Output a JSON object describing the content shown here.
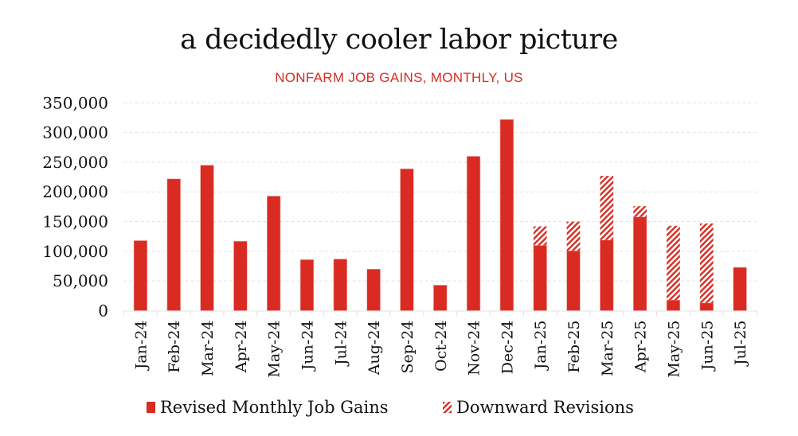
{
  "chart_data": {
    "type": "bar",
    "stacked": true,
    "title": "a decidedly cooler labor picture",
    "subtitle": "NONFARM JOB GAINS, MONTHLY, US",
    "xlabel": "",
    "ylabel": "",
    "ylim": [
      0,
      350000
    ],
    "yticks": [
      0,
      50000,
      100000,
      150000,
      200000,
      250000,
      300000,
      350000
    ],
    "ytick_labels": [
      "0",
      "50,000",
      "100,000",
      "150,000",
      "200,000",
      "250,000",
      "300,000",
      "350,000"
    ],
    "grid": true,
    "legend_position": "bottom",
    "categories": [
      "Jan-24",
      "Feb-24",
      "Mar-24",
      "Apr-24",
      "May-24",
      "Jun-24",
      "Jul-24",
      "Aug-24",
      "Sep-24",
      "Oct-24",
      "Nov-24",
      "Dec-24",
      "Jan-25",
      "Feb-25",
      "Mar-25",
      "Apr-25",
      "May-25",
      "Jun-25",
      "Jul-25"
    ],
    "series": [
      {
        "name": "Revised Monthly Job Gains",
        "style": "solid",
        "color": "#d92b21",
        "values": [
          118000,
          222000,
          245000,
          117000,
          193000,
          86000,
          87000,
          70000,
          239000,
          43000,
          260000,
          322000,
          110000,
          101000,
          119000,
          158000,
          18000,
          13000,
          73000
        ]
      },
      {
        "name": "Downward Revisions",
        "style": "hatched",
        "color": "#d92b21",
        "values": [
          0,
          0,
          0,
          0,
          0,
          0,
          0,
          0,
          0,
          0,
          0,
          0,
          32000,
          49000,
          108000,
          18000,
          125000,
          134000,
          0
        ]
      }
    ]
  }
}
